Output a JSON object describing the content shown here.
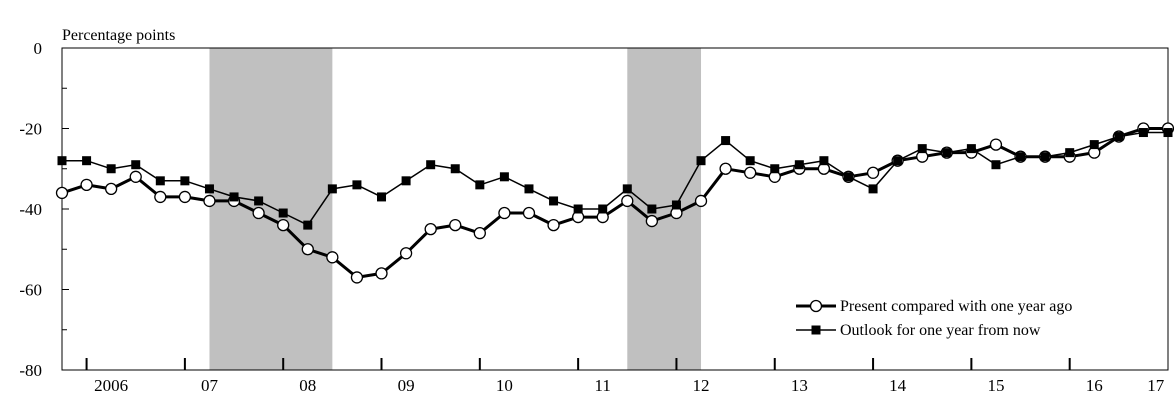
{
  "chart_data": {
    "type": "line",
    "y_unit_label": "Percentage points",
    "ylim": [
      -80,
      0
    ],
    "y_ticks": [
      0,
      -20,
      -40,
      -60,
      -80
    ],
    "y_tick_labels": [
      "0",
      "-20",
      "-40",
      "-60",
      "-80"
    ],
    "x_start": 2006.0,
    "x_end": 2017.25,
    "year_labels": [
      {
        "label": "2006",
        "x": 2006.5
      },
      {
        "label": "07",
        "x": 2007.5
      },
      {
        "label": "08",
        "x": 2008.5
      },
      {
        "label": "09",
        "x": 2009.5
      },
      {
        "label": "10",
        "x": 2010.5
      },
      {
        "label": "11",
        "x": 2011.5
      },
      {
        "label": "12",
        "x": 2012.5
      },
      {
        "label": "13",
        "x": 2013.5
      },
      {
        "label": "14",
        "x": 2014.5
      },
      {
        "label": "15",
        "x": 2015.5
      },
      {
        "label": "16",
        "x": 2016.5
      },
      {
        "label": "17",
        "x": 2017.125
      }
    ],
    "shaded_periods": [
      [
        2007.5,
        2008.75
      ],
      [
        2011.75,
        2012.5
      ]
    ],
    "grid": false,
    "legend_position": "bottom-right",
    "quarters": [
      2006.0,
      2006.25,
      2006.5,
      2006.75,
      2007.0,
      2007.25,
      2007.5,
      2007.75,
      2008.0,
      2008.25,
      2008.5,
      2008.75,
      2009.0,
      2009.25,
      2009.5,
      2009.75,
      2010.0,
      2010.25,
      2010.5,
      2010.75,
      2011.0,
      2011.25,
      2011.5,
      2011.75,
      2012.0,
      2012.25,
      2012.5,
      2012.75,
      2013.0,
      2013.25,
      2013.5,
      2013.75,
      2014.0,
      2014.25,
      2014.5,
      2014.75,
      2015.0,
      2015.25,
      2015.5,
      2015.75,
      2016.0,
      2016.25,
      2016.5,
      2016.75,
      2017.0,
      2017.25
    ],
    "series": [
      {
        "name": "Present compared with one year ago",
        "marker": "circle",
        "line_width": 3,
        "values": [
          -36,
          -34,
          -35,
          -32,
          -37,
          -37,
          -38,
          -38,
          -41,
          -44,
          -50,
          -52,
          -57,
          -56,
          -51,
          -45,
          -44,
          -46,
          -41,
          -41,
          -44,
          -42,
          -42,
          -38,
          -43,
          -41,
          -38,
          -30,
          -31,
          -32,
          -30,
          -30,
          -32,
          -31,
          -28,
          -27,
          -26,
          -26,
          -24,
          -27,
          -27,
          -27,
          -26,
          -22,
          -20,
          -20
        ]
      },
      {
        "name": "Outlook for one year from now",
        "marker": "square",
        "line_width": 1.5,
        "values": [
          -28,
          -28,
          -30,
          -29,
          -33,
          -33,
          -35,
          -37,
          -38,
          -41,
          -44,
          -35,
          -34,
          -37,
          -33,
          -29,
          -30,
          -34,
          -32,
          -35,
          -38,
          -40,
          -40,
          -35,
          -40,
          -39,
          -28,
          -23,
          -28,
          -30,
          -29,
          -28,
          -32,
          -35,
          -28,
          -25,
          -26,
          -25,
          -29,
          -27,
          -27,
          -26,
          -24,
          -22,
          -21,
          -21
        ]
      }
    ]
  }
}
